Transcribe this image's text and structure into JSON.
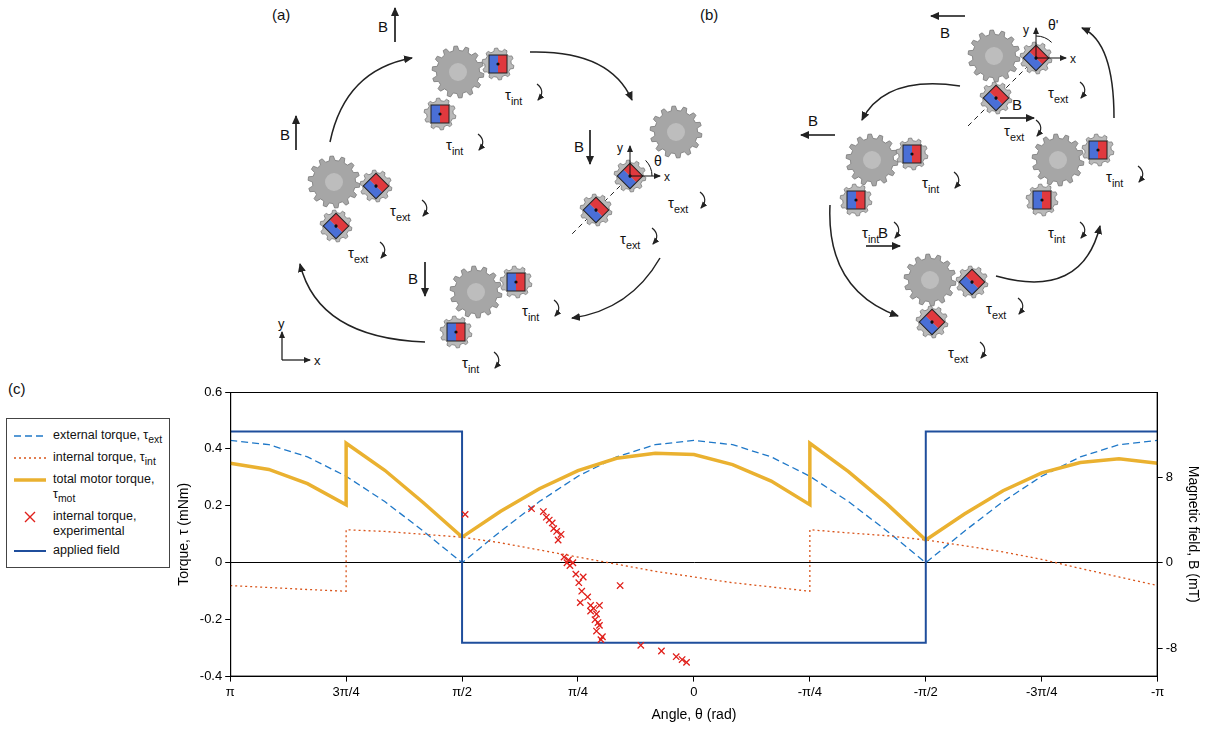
{
  "diagram_a": {
    "label": "(a)",
    "states": [
      {
        "field": "B",
        "field_direction": "up",
        "torques": [
          "τint",
          "τint"
        ]
      },
      {
        "field": "B",
        "field_direction": "down",
        "torques": [
          "τext",
          "τext"
        ],
        "angle": "θ",
        "angle_axes": [
          "x",
          "y"
        ]
      },
      {
        "field": "B",
        "field_direction": "down",
        "torques": [
          "τint",
          "τint"
        ]
      },
      {
        "field": "B",
        "field_direction": "up",
        "torques": [
          "τext",
          "τext"
        ]
      }
    ],
    "frame_axes": [
      "x",
      "y"
    ]
  },
  "diagram_b": {
    "label": "(b)",
    "states": [
      {
        "field": "B",
        "field_direction": "left",
        "torques": [
          "τext",
          "τext"
        ],
        "angle": "θ'",
        "angle_axes": [
          "x",
          "y"
        ]
      },
      {
        "field": "B",
        "field_direction": "left",
        "torques": [
          "τint",
          "τint"
        ]
      },
      {
        "field": "B",
        "field_direction": "right",
        "torques": [
          "τint",
          "τint"
        ]
      },
      {
        "field": "B",
        "field_direction": "right",
        "torques": [
          "τext",
          "τext"
        ]
      }
    ]
  },
  "chart_data": {
    "type": "line",
    "label": "(c)",
    "xlabel": "Angle, θ (rad)",
    "ylabel": "Torque, τ (mNm)",
    "y2label": "Magnetic field, B (mT)",
    "xlim": [
      3.1416,
      -3.1416
    ],
    "xticks": [
      {
        "value": 3.1416,
        "label": "π"
      },
      {
        "value": 2.3562,
        "label": "3π/4"
      },
      {
        "value": 1.5708,
        "label": "π/2"
      },
      {
        "value": 0.7854,
        "label": "π/4"
      },
      0,
      {
        "value": -0.7854,
        "label": "-π/4"
      },
      {
        "value": -1.5708,
        "label": "-π/2"
      },
      {
        "value": -2.3562,
        "label": "-3π/4"
      },
      {
        "value": -3.1416,
        "label": "-π"
      }
    ],
    "ylim": [
      -0.4,
      0.6
    ],
    "yticks": [
      -0.4,
      -0.2,
      0,
      0.2,
      0.4,
      0.6
    ],
    "y2lim": [
      -10.67,
      16
    ],
    "y2ticks": [
      -8,
      0,
      8
    ],
    "grid": false,
    "legend": "left",
    "series": [
      {
        "name": "external torque, τext",
        "color": "#1f78c8",
        "line_style": "dashed",
        "marker": "none",
        "x": [
          3.1416,
          2.8798,
          2.618,
          2.3562,
          2.0944,
          1.8326,
          1.5708,
          1.309,
          1.0472,
          0.7854,
          0.5236,
          0.2618,
          0,
          -0.2618,
          -0.5236,
          -0.7854,
          -1.0472,
          -1.309,
          -1.5708,
          -1.8326,
          -2.0944,
          -2.3562,
          -2.618,
          -2.8798,
          -3.1416
        ],
        "values": [
          0.43,
          0.415,
          0.372,
          0.304,
          0.215,
          0.111,
          0,
          0.111,
          0.215,
          0.304,
          0.372,
          0.415,
          0.43,
          0.415,
          0.372,
          0.304,
          0.215,
          0.111,
          0,
          0.111,
          0.215,
          0.304,
          0.372,
          0.415,
          0.43
        ]
      },
      {
        "name": "internal torque, τint",
        "color": "#d9541a",
        "line_style": "dotted",
        "marker": "none",
        "x": [
          3.1416,
          2.8798,
          2.618,
          2.3562,
          2.3562,
          2.0944,
          1.8326,
          1.5708,
          1.309,
          1.0472,
          0.7854,
          0.5236,
          0.2618,
          0,
          -0.2618,
          -0.5236,
          -0.7854,
          -0.7854,
          -1.0472,
          -1.309,
          -1.5708,
          -1.8326,
          -2.0944,
          -2.3562,
          -2.618,
          -2.8798,
          -3.1416
        ],
        "values": [
          -0.08,
          -0.087,
          -0.094,
          -0.1,
          0.116,
          0.11,
          0.1,
          0.09,
          0.07,
          0.045,
          0.02,
          -0.005,
          -0.03,
          -0.05,
          -0.07,
          -0.085,
          -0.1,
          0.116,
          0.105,
          0.095,
          0.08,
          0.06,
          0.038,
          0.012,
          -0.02,
          -0.05,
          -0.08
        ]
      },
      {
        "name": "total motor torque, τmot",
        "color": "#eab130",
        "line_style": "solid",
        "marker": "none",
        "x": [
          3.1416,
          2.8798,
          2.618,
          2.3562,
          2.3562,
          2.0944,
          1.8326,
          1.5708,
          1.309,
          1.0472,
          0.7854,
          0.5236,
          0.2618,
          0,
          -0.2618,
          -0.5236,
          -0.7854,
          -0.7854,
          -1.0472,
          -1.309,
          -1.5708,
          -1.8326,
          -2.0944,
          -2.3562,
          -2.618,
          -2.8798,
          -3.1416
        ],
        "values": [
          0.35,
          0.328,
          0.278,
          0.204,
          0.42,
          0.325,
          0.211,
          0.09,
          0.181,
          0.26,
          0.324,
          0.367,
          0.385,
          0.38,
          0.345,
          0.287,
          0.204,
          0.42,
          0.32,
          0.206,
          0.08,
          0.171,
          0.253,
          0.316,
          0.352,
          0.365,
          0.35
        ]
      },
      {
        "name": "internal torque, experimental",
        "color": "#e0201b",
        "line_style": "none",
        "marker": "x",
        "x": [
          1.55,
          1.1,
          1.02,
          1.0,
          0.98,
          0.96,
          0.95,
          0.93,
          0.9,
          0.92,
          0.88,
          0.86,
          0.84,
          0.82,
          0.85,
          0.8,
          0.78,
          0.76,
          0.77,
          0.72,
          0.7,
          0.68,
          0.7,
          0.66,
          0.67,
          0.65,
          0.64,
          0.66,
          0.62,
          0.63,
          0.64,
          0.5,
          0.36,
          0.22,
          0.12,
          0.08,
          0.05,
          0.75
        ],
        "values": [
          0.17,
          0.19,
          0.18,
          0.16,
          0.15,
          0.14,
          0.12,
          0.11,
          0.1,
          0.08,
          0.02,
          0,
          -0.01,
          0,
          0.01,
          -0.04,
          -0.07,
          -0.1,
          -0.14,
          -0.12,
          -0.15,
          -0.16,
          -0.17,
          -0.18,
          -0.2,
          -0.21,
          -0.22,
          -0.24,
          -0.26,
          -0.27,
          -0.15,
          -0.08,
          -0.29,
          -0.31,
          -0.33,
          -0.34,
          -0.35,
          -0.05
        ]
      },
      {
        "name": "applied field",
        "color": "#1f4e9c",
        "line_style": "solid",
        "marker": "none",
        "axis": "y2",
        "x": [
          3.1416,
          1.5708,
          1.5708,
          -1.5708,
          -1.5708,
          -3.1416
        ],
        "values": [
          12.3,
          12.3,
          -7.5,
          -7.5,
          12.3,
          12.3
        ]
      }
    ]
  }
}
